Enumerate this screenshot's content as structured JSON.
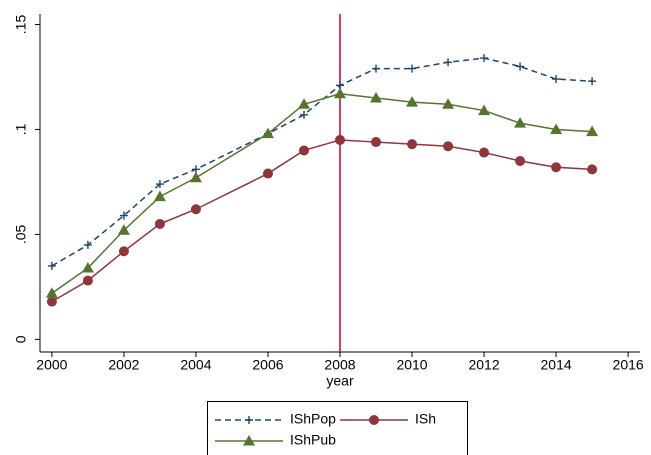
{
  "chart_data": {
    "type": "line",
    "x": [
      2000,
      2001,
      2002,
      2003,
      2004,
      2006,
      2007,
      2008,
      2009,
      2010,
      2011,
      2012,
      2013,
      2014,
      2015
    ],
    "series": [
      {
        "name": "IShPop",
        "color": "#1a476f",
        "marker": "plus",
        "dash": true,
        "values": [
          0.035,
          0.045,
          0.059,
          0.074,
          0.081,
          0.098,
          0.107,
          0.121,
          0.129,
          0.129,
          0.132,
          0.134,
          0.13,
          0.124,
          0.123
        ]
      },
      {
        "name": "ISh",
        "color": "#90353b",
        "marker": "circle",
        "dash": false,
        "values": [
          0.018,
          0.028,
          0.042,
          0.055,
          0.062,
          0.079,
          0.09,
          0.095,
          0.094,
          0.093,
          0.092,
          0.089,
          0.085,
          0.082,
          0.081
        ]
      },
      {
        "name": "IShPub",
        "color": "#55752f",
        "marker": "triangle",
        "dash": false,
        "values": [
          0.022,
          0.034,
          0.052,
          0.068,
          0.077,
          0.098,
          0.112,
          0.117,
          0.115,
          0.113,
          0.112,
          0.109,
          0.103,
          0.1,
          0.099
        ]
      }
    ],
    "xlabel": "year",
    "xlim": [
      1999.67,
      2016.33
    ],
    "xticks": [
      2000,
      2002,
      2004,
      2006,
      2008,
      2010,
      2012,
      2014,
      2016
    ],
    "ylim": [
      -0.006,
      0.155
    ],
    "yticks": [
      0,
      {
        "value": 0.05,
        "label": ".05"
      },
      {
        "value": 0.1,
        "label": ".1"
      },
      {
        "value": 0.15,
        "label": ".15"
      }
    ],
    "vline": {
      "value": 2008,
      "color": "#c10534"
    }
  }
}
